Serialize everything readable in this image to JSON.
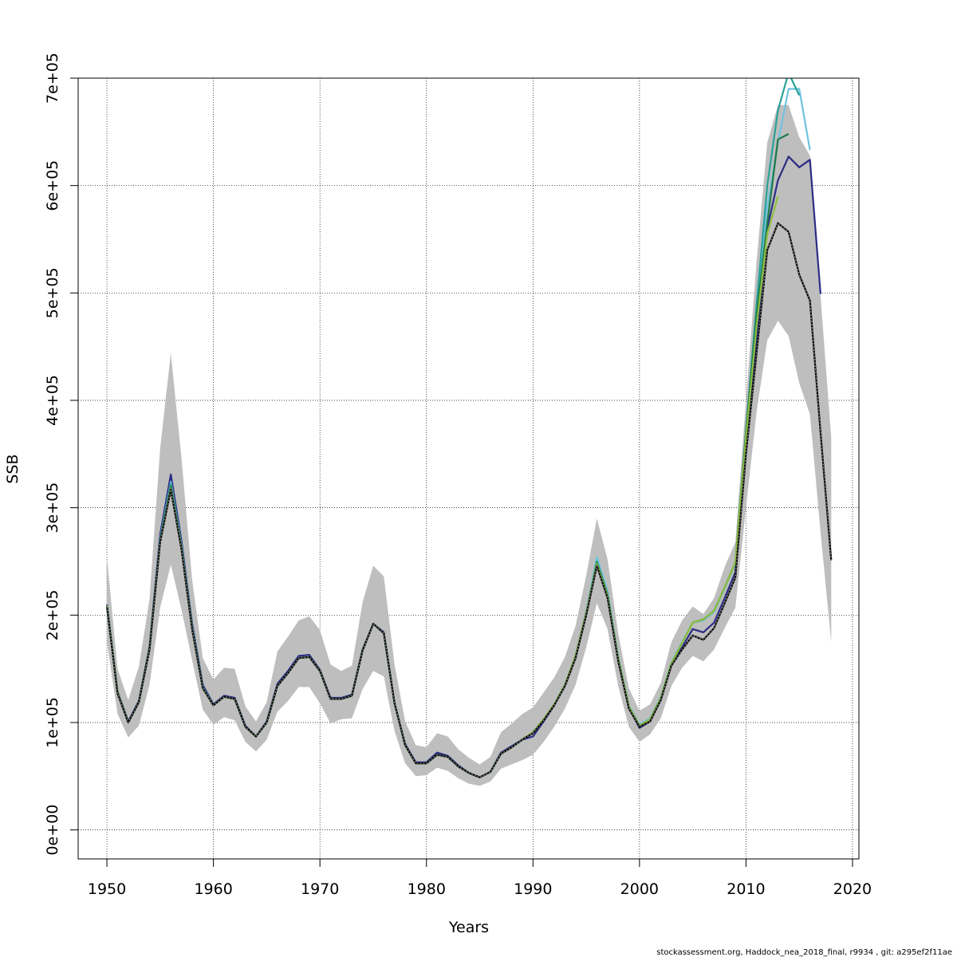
{
  "chart_data": {
    "type": "line",
    "title": "",
    "xlabel": "Years",
    "ylabel": "SSB",
    "xlim": [
      1947.3,
      2020.6
    ],
    "ylim": [
      -27000,
      700000
    ],
    "x_ticks": [
      1950,
      1960,
      1970,
      1980,
      1990,
      2000,
      2010,
      2020
    ],
    "x_tick_labels": [
      "1950",
      "1960",
      "1970",
      "1980",
      "1990",
      "2000",
      "2010",
      "2020"
    ],
    "y_ticks": [
      0,
      100000,
      200000,
      300000,
      400000,
      500000,
      600000,
      700000
    ],
    "y_tick_labels": [
      "0e+00",
      "1e+05",
      "2e+05",
      "3e+05",
      "4e+05",
      "5e+05",
      "6e+05",
      "7e+05"
    ],
    "grid": true,
    "footer": "stockassessment.org, Haddock_nea_2018_final, r9934 , git: a295ef2f11ae",
    "confidence_band": {
      "color": "#bebebe",
      "x": [
        1950,
        1951,
        1952,
        1953,
        1954,
        1955,
        1956,
        1957,
        1958,
        1959,
        1960,
        1961,
        1962,
        1963,
        1964,
        1965,
        1966,
        1967,
        1968,
        1969,
        1970,
        1971,
        1972,
        1973,
        1974,
        1975,
        1976,
        1977,
        1978,
        1979,
        1980,
        1981,
        1982,
        1983,
        1984,
        1985,
        1986,
        1987,
        1988,
        1989,
        1990,
        1991,
        1992,
        1993,
        1994,
        1995,
        1996,
        1997,
        1998,
        1999,
        2000,
        2001,
        2002,
        2003,
        2004,
        2005,
        2006,
        2007,
        2008,
        2009,
        2010,
        2011,
        2012,
        2013,
        2014,
        2015,
        2016,
        2017,
        2018
      ],
      "lower": [
        175000,
        108000,
        86000,
        97000,
        135000,
        207000,
        247000,
        205000,
        158000,
        112000,
        98000,
        105000,
        102000,
        82000,
        73000,
        84000,
        110000,
        120000,
        133000,
        133000,
        118000,
        99000,
        103000,
        104000,
        131000,
        148000,
        143000,
        92000,
        62000,
        50000,
        51000,
        58000,
        55000,
        48000,
        43000,
        41000,
        45000,
        57000,
        61000,
        65000,
        70000,
        82000,
        96000,
        113000,
        135000,
        170000,
        211000,
        187000,
        134000,
        96000,
        82000,
        89000,
        104000,
        134000,
        151000,
        162000,
        157000,
        168000,
        188000,
        207000,
        300000,
        390000,
        456000,
        474000,
        460000,
        416000,
        387000,
        277000,
        175000
      ],
      "upper": [
        254000,
        150000,
        121000,
        152000,
        215000,
        355000,
        444000,
        346000,
        233000,
        160000,
        140000,
        151000,
        150000,
        115000,
        101000,
        119000,
        166000,
        180000,
        195000,
        199000,
        186000,
        154000,
        148000,
        153000,
        212000,
        246000,
        236000,
        154000,
        101000,
        79000,
        77000,
        90000,
        87000,
        75000,
        67000,
        61000,
        68000,
        91000,
        99000,
        108000,
        114000,
        128000,
        142000,
        161000,
        190000,
        237000,
        290000,
        252000,
        183000,
        132000,
        111000,
        117000,
        137000,
        175000,
        195000,
        208000,
        201000,
        216000,
        245000,
        268000,
        400000,
        530000,
        640000,
        675000,
        675000,
        645000,
        628000,
        497000,
        365000
      ]
    },
    "series": [
      {
        "color": "#2c2c85",
        "x": [
          1950,
          1951,
          1952,
          1953,
          1954,
          1955,
          1956,
          1957,
          1958,
          1959,
          1960,
          1961,
          1962,
          1963,
          1964,
          1965,
          1966,
          1967,
          1968,
          1969,
          1970,
          1971,
          1972,
          1973,
          1974,
          1975,
          1976,
          1977,
          1978,
          1979,
          1980,
          1981,
          1982,
          1983,
          1984,
          1985,
          1986,
          1987,
          1988,
          1989,
          1990,
          1991,
          1992,
          1993,
          1994,
          1995,
          1996,
          1997,
          1998,
          1999,
          2000,
          2001,
          2002,
          2003,
          2004,
          2005,
          2006,
          2007,
          2008,
          2009,
          2010,
          2011,
          2012,
          2013,
          2014,
          2015,
          2016,
          2017
        ],
        "values": [
          210000,
          129000,
          101000,
          120000,
          171000,
          275000,
          331000,
          269000,
          192000,
          135000,
          117000,
          125000,
          123000,
          97000,
          87000,
          101000,
          136000,
          148000,
          162000,
          163000,
          149000,
          123000,
          123000,
          126000,
          168000,
          192000,
          184000,
          118000,
          80000,
          63000,
          63000,
          72000,
          69000,
          60000,
          53000,
          49000,
          54000,
          72000,
          78000,
          84000,
          87000,
          101000,
          116000,
          135000,
          162000,
          203000,
          248000,
          218000,
          159000,
          114000,
          95000,
          101000,
          122000,
          154000,
          170000,
          187000,
          184000,
          193000,
          216000,
          240000,
          360000,
          460000,
          560000,
          605000,
          627000,
          617000,
          624000,
          499000
        ]
      },
      {
        "color": "#6fc3df",
        "x": [
          1950,
          1951,
          1952,
          1953,
          1954,
          1955,
          1956,
          1957,
          1958,
          1959,
          1960,
          1961,
          1962,
          1963,
          1964,
          1965,
          1966,
          1967,
          1968,
          1969,
          1970,
          1971,
          1972,
          1973,
          1974,
          1975,
          1976,
          1977,
          1978,
          1979,
          1980,
          1981,
          1982,
          1983,
          1984,
          1985,
          1986,
          1987,
          1988,
          1989,
          1990,
          1991,
          1992,
          1993,
          1994,
          1995,
          1996,
          1997,
          1998,
          1999,
          2000,
          2001,
          2002,
          2003,
          2004,
          2005,
          2006,
          2007,
          2008,
          2009,
          2010,
          2011,
          2012,
          2013,
          2014,
          2015,
          2016
        ],
        "values": [
          209000,
          128000,
          100000,
          119000,
          169000,
          271000,
          324000,
          265000,
          189000,
          133000,
          116000,
          124000,
          122000,
          96000,
          87000,
          100000,
          134000,
          146000,
          160000,
          161000,
          148000,
          122000,
          122000,
          125000,
          167000,
          192000,
          183000,
          118000,
          79000,
          62000,
          62000,
          70000,
          68000,
          59000,
          53000,
          49000,
          54000,
          71000,
          77000,
          84000,
          91000,
          103000,
          117000,
          135000,
          162000,
          203000,
          254000,
          222000,
          161000,
          116000,
          98000,
          104000,
          124000,
          156000,
          175000,
          193000,
          195000,
          203000,
          225000,
          248000,
          370000,
          480000,
          580000,
          640000,
          690000,
          690000,
          633000
        ]
      },
      {
        "color": "#2aa198",
        "x": [
          1950,
          1951,
          1952,
          1953,
          1954,
          1955,
          1956,
          1957,
          1958,
          1959,
          1960,
          1961,
          1962,
          1963,
          1964,
          1965,
          1966,
          1967,
          1968,
          1969,
          1970,
          1971,
          1972,
          1973,
          1974,
          1975,
          1976,
          1977,
          1978,
          1979,
          1980,
          1981,
          1982,
          1983,
          1984,
          1985,
          1986,
          1987,
          1988,
          1989,
          1990,
          1991,
          1992,
          1993,
          1994,
          1995,
          1996,
          1997,
          1998,
          1999,
          2000,
          2001,
          2002,
          2003,
          2004,
          2005,
          2006,
          2007,
          2008,
          2009,
          2010,
          2011,
          2012,
          2013,
          2014,
          2015
        ],
        "values": [
          209000,
          128000,
          100000,
          119000,
          169000,
          270000,
          322000,
          264000,
          188000,
          133000,
          116000,
          124000,
          122000,
          96000,
          87000,
          100000,
          134000,
          146000,
          160000,
          161000,
          148000,
          122000,
          122000,
          125000,
          167000,
          192000,
          183000,
          118000,
          79000,
          62000,
          62000,
          70000,
          68000,
          59000,
          53000,
          49000,
          54000,
          71000,
          77000,
          84000,
          91000,
          103000,
          117000,
          135000,
          162000,
          202000,
          250000,
          220000,
          160000,
          115000,
          97000,
          103000,
          123000,
          155000,
          174000,
          193000,
          196000,
          204000,
          226000,
          249000,
          372000,
          490000,
          600000,
          670000,
          705000,
          684000
        ]
      },
      {
        "color": "#1e7a46",
        "x": [
          1950,
          1951,
          1952,
          1953,
          1954,
          1955,
          1956,
          1957,
          1958,
          1959,
          1960,
          1961,
          1962,
          1963,
          1964,
          1965,
          1966,
          1967,
          1968,
          1969,
          1970,
          1971,
          1972,
          1973,
          1974,
          1975,
          1976,
          1977,
          1978,
          1979,
          1980,
          1981,
          1982,
          1983,
          1984,
          1985,
          1986,
          1987,
          1988,
          1989,
          1990,
          1991,
          1992,
          1993,
          1994,
          1995,
          1996,
          1997,
          1998,
          1999,
          2000,
          2001,
          2002,
          2003,
          2004,
          2005,
          2006,
          2007,
          2008,
          2009,
          2010,
          2011,
          2012,
          2013,
          2014
        ],
        "values": [
          209000,
          128000,
          100000,
          119000,
          169000,
          269000,
          320000,
          263000,
          188000,
          132000,
          116000,
          124000,
          122000,
          96000,
          87000,
          100000,
          134000,
          146000,
          160000,
          161000,
          148000,
          122000,
          122000,
          125000,
          167000,
          192000,
          183000,
          118000,
          79000,
          62000,
          62000,
          70000,
          68000,
          59000,
          53000,
          49000,
          54000,
          71000,
          77000,
          84000,
          91000,
          103000,
          117000,
          135000,
          162000,
          202000,
          249000,
          219000,
          160000,
          115000,
          97000,
          103000,
          123000,
          155000,
          174000,
          193000,
          196000,
          204000,
          226000,
          249000,
          370000,
          480000,
          565000,
          643000,
          648000
        ]
      },
      {
        "color": "#8fbf3f",
        "x": [
          1950,
          1951,
          1952,
          1953,
          1954,
          1955,
          1956,
          1957,
          1958,
          1959,
          1960,
          1961,
          1962,
          1963,
          1964,
          1965,
          1966,
          1967,
          1968,
          1969,
          1970,
          1971,
          1972,
          1973,
          1974,
          1975,
          1976,
          1977,
          1978,
          1979,
          1980,
          1981,
          1982,
          1983,
          1984,
          1985,
          1986,
          1987,
          1988,
          1989,
          1990,
          1991,
          1992,
          1993,
          1994,
          1995,
          1996,
          1997,
          1998,
          1999,
          2000,
          2001,
          2002,
          2003,
          2004,
          2005,
          2006,
          2007,
          2008,
          2009,
          2010,
          2011,
          2012,
          2013
        ],
        "values": [
          209000,
          128000,
          100000,
          119000,
          169000,
          268000,
          318000,
          262000,
          187000,
          132000,
          116000,
          124000,
          122000,
          96000,
          87000,
          100000,
          134000,
          146000,
          160000,
          161000,
          148000,
          122000,
          122000,
          125000,
          167000,
          192000,
          183000,
          118000,
          79000,
          62000,
          62000,
          70000,
          68000,
          59000,
          53000,
          49000,
          54000,
          71000,
          77000,
          84000,
          91000,
          103000,
          117000,
          135000,
          162000,
          202000,
          248000,
          218000,
          159000,
          115000,
          97000,
          103000,
          123000,
          155000,
          174000,
          193000,
          196000,
          204000,
          226000,
          249000,
          365000,
          470000,
          555000,
          590000
        ]
      },
      {
        "color": "#000000",
        "dashed_overlay": "#888888",
        "x": [
          1950,
          1951,
          1952,
          1953,
          1954,
          1955,
          1956,
          1957,
          1958,
          1959,
          1960,
          1961,
          1962,
          1963,
          1964,
          1965,
          1966,
          1967,
          1968,
          1969,
          1970,
          1971,
          1972,
          1973,
          1974,
          1975,
          1976,
          1977,
          1978,
          1979,
          1980,
          1981,
          1982,
          1983,
          1984,
          1985,
          1986,
          1987,
          1988,
          1989,
          1990,
          1991,
          1992,
          1993,
          1994,
          1995,
          1996,
          1997,
          1998,
          1999,
          2000,
          2001,
          2002,
          2003,
          2004,
          2005,
          2006,
          2007,
          2008,
          2009,
          2010,
          2011,
          2012,
          2013,
          2014,
          2015,
          2016,
          2017,
          2018
        ],
        "values": [
          208000,
          127000,
          100000,
          119000,
          168000,
          268000,
          317000,
          261000,
          187000,
          132000,
          116000,
          124000,
          122000,
          96000,
          87000,
          100000,
          134000,
          146000,
          160000,
          161000,
          148000,
          122000,
          122000,
          125000,
          167000,
          192000,
          183000,
          118000,
          79000,
          62000,
          62000,
          70000,
          68000,
          59000,
          53000,
          49000,
          54000,
          71000,
          77000,
          84000,
          90000,
          102000,
          116000,
          134000,
          160000,
          200000,
          246000,
          216000,
          157000,
          113000,
          96000,
          101000,
          121000,
          153000,
          168000,
          181000,
          177000,
          188000,
          211000,
          235000,
          350000,
          445000,
          540000,
          565000,
          557000,
          517000,
          493000,
          370000,
          251000
        ]
      }
    ]
  }
}
